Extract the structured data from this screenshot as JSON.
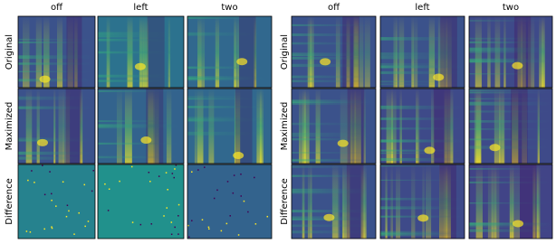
{
  "panels": [
    {
      "columns": [
        "off",
        "left",
        "two"
      ],
      "rows": [
        "Original",
        "Maximized",
        "Difference"
      ]
    },
    {
      "columns": [
        "off",
        "left",
        "two"
      ],
      "rows": [
        "Original",
        "Maximized",
        "Difference"
      ]
    }
  ]
}
